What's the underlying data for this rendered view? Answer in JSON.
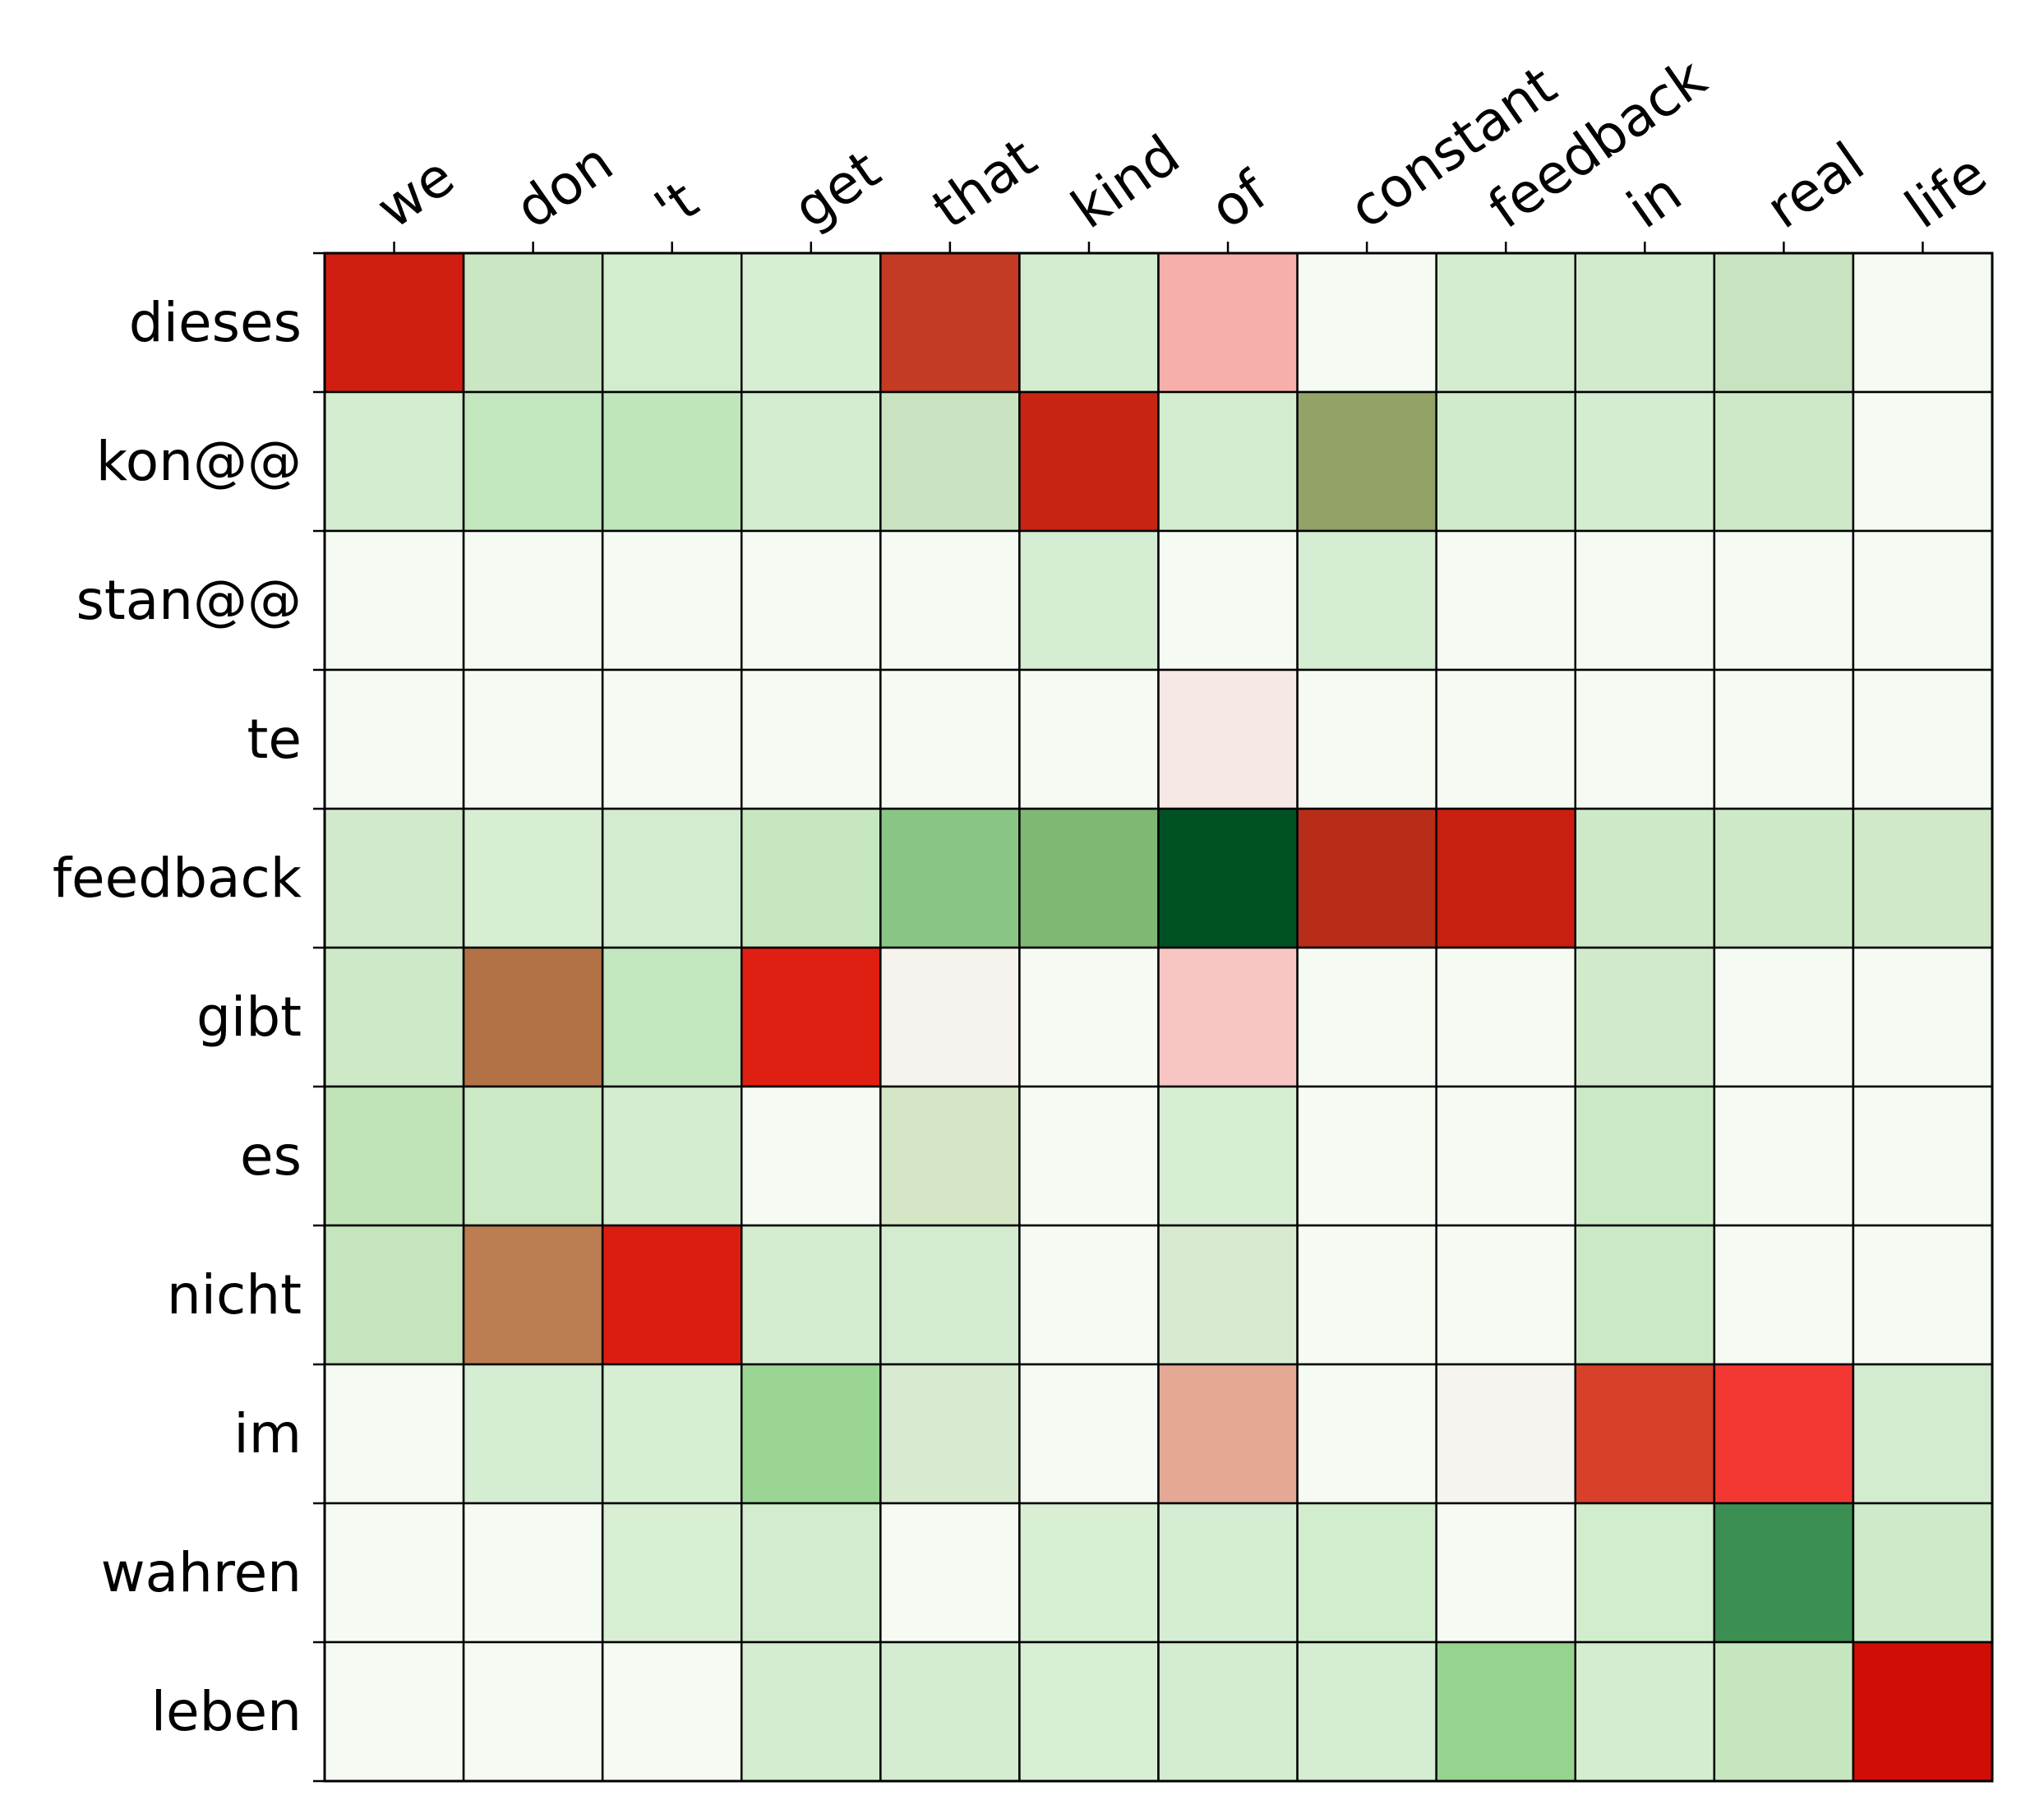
{
  "chart_data": {
    "type": "heatmap",
    "title": "",
    "xlabel": "",
    "ylabel": "",
    "x_labels": [
      "we",
      "don",
      "'t",
      "get",
      "that",
      "kind",
      "of",
      "constant",
      "feedback",
      "in",
      "real",
      "life"
    ],
    "y_labels": [
      "dieses",
      "kon@@",
      "stan@@",
      "te",
      "feedback",
      "gibt",
      "es",
      "nicht",
      "im",
      "wahren",
      "leben"
    ],
    "cell_colors": [
      [
        "#d01e10",
        "#cae6c3",
        "#d2ecce",
        "#d7eed3",
        "#c33b22",
        "#d4ecd0",
        "#f7afab",
        "#f5faf3",
        "#d4ecd0",
        "#d1ebcc",
        "#c7e3bf",
        "#f5faf3"
      ],
      [
        "#d4edd0",
        "#c2e6bd",
        "#bfe5bb",
        "#d3ecd0",
        "#c9e3c1",
        "#c82413",
        "#d3ecd0",
        "#93a367",
        "#d0ebcc",
        "#d4ecd0",
        "#cde9c7",
        "#f5faf3"
      ],
      [
        "#f5faf3",
        "#f5faf3",
        "#f5faf3",
        "#f5faf3",
        "#f5faf3",
        "#d5edd2",
        "#f5faf3",
        "#d5edd2",
        "#f5faf3",
        "#f5faf3",
        "#f5faf3",
        "#f5faf3"
      ],
      [
        "#f5faf3",
        "#f5faf3",
        "#f5faf3",
        "#f5faf3",
        "#f5faf3",
        "#f5faf3",
        "#f6e8e5",
        "#f5faf3",
        "#f5faf3",
        "#f5faf3",
        "#f5faf3",
        "#f5faf3"
      ],
      [
        "#d0eacb",
        "#d7eed3",
        "#d3ecd0",
        "#c7e7c0",
        "#89c685",
        "#7fb873",
        "#005224",
        "#b82d17",
        "#c91f10",
        "#cde9c7",
        "#cde9c7",
        "#cfe9c9"
      ],
      [
        "#cde9c7",
        "#b27245",
        "#c2e6bd",
        "#df1f12",
        "#f6f2ee",
        "#f5faf3",
        "#f8c6c2",
        "#f5faf3",
        "#f5faf3",
        "#d0eacb",
        "#f5faf3",
        "#f5faf3"
      ],
      [
        "#c1e3b8",
        "#cbe9c5",
        "#d4edd0",
        "#f5faf3",
        "#d5e6c6",
        "#f5faf3",
        "#d7eed3",
        "#f5faf3",
        "#f5faf3",
        "#cce9c6",
        "#f5faf3",
        "#f5faf3"
      ],
      [
        "#c4e5bd",
        "#bc7d52",
        "#dc1c11",
        "#d4edd0",
        "#d3ecd0",
        "#f5faf3",
        "#d7ead0",
        "#f5faf3",
        "#f5faf3",
        "#cce9c6",
        "#f5faf3",
        "#f5faf3"
      ],
      [
        "#f5faf3",
        "#d5edd2",
        "#d6eed2",
        "#9bd594",
        "#d8ead0",
        "#f5faf3",
        "#e4a895",
        "#f5faf3",
        "#f6f4ee",
        "#d9402a",
        "#f33833",
        "#d3ecd0"
      ],
      [
        "#f5faf3",
        "#f5faf3",
        "#d8efd4",
        "#d3ecd0",
        "#f5faf3",
        "#d8efd4",
        "#d5edd2",
        "#d2ecce",
        "#f5faf3",
        "#d2ecce",
        "#3b8f52",
        "#cfeac9"
      ],
      [
        "#f5faf3",
        "#f5faf3",
        "#f5faf3",
        "#d4edd0",
        "#d4edd0",
        "#d8efd4",
        "#d4edd0",
        "#d5edd2",
        "#95d38e",
        "#d4edd0",
        "#c6e6bf",
        "#d00d06"
      ]
    ],
    "colormap_note": "",
    "legend": "none",
    "grid": true
  }
}
